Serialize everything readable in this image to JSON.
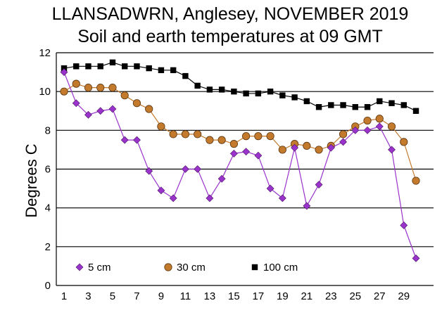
{
  "chart_data": {
    "type": "line",
    "title": "LLANSADWRN, Anglesey, NOVEMBER 2019",
    "subtitle": "Soil and earth temperatures at 09 GMT",
    "xlabel": "",
    "ylabel": "Degrees C",
    "xlim": [
      1,
      30
    ],
    "ylim": [
      0,
      12
    ],
    "x_ticks": [
      1,
      3,
      5,
      7,
      9,
      11,
      13,
      15,
      17,
      19,
      21,
      23,
      25,
      27,
      29
    ],
    "y_ticks": [
      0,
      2,
      4,
      6,
      8,
      10,
      12
    ],
    "grid": "horizontal",
    "legend": "bottom-inside",
    "x": [
      1,
      2,
      3,
      4,
      5,
      6,
      7,
      8,
      9,
      10,
      11,
      12,
      13,
      14,
      15,
      16,
      17,
      18,
      19,
      20,
      21,
      22,
      23,
      24,
      25,
      26,
      27,
      28,
      29,
      30
    ],
    "series": [
      {
        "name": "5 cm",
        "color": "#9933CC",
        "marker": "diamond",
        "values": [
          11.0,
          9.4,
          8.8,
          9.0,
          9.1,
          7.5,
          7.5,
          5.9,
          4.9,
          4.5,
          6.0,
          6.0,
          4.5,
          5.5,
          6.8,
          6.9,
          6.7,
          5.0,
          4.5,
          7.1,
          4.1,
          5.2,
          7.1,
          7.4,
          8.0,
          8.0,
          8.2,
          7.0,
          3.1,
          1.4
        ]
      },
      {
        "name": "30 cm",
        "color": "#C47A2C",
        "marker": "circle",
        "values": [
          10.0,
          10.4,
          10.2,
          10.2,
          10.2,
          9.8,
          9.4,
          9.1,
          8.2,
          7.8,
          7.8,
          7.8,
          7.5,
          7.5,
          7.3,
          7.7,
          7.7,
          7.7,
          7.0,
          7.3,
          7.2,
          7.0,
          7.2,
          7.8,
          8.2,
          8.5,
          8.6,
          8.2,
          7.4,
          5.4
        ]
      },
      {
        "name": "100 cm",
        "color": "#000000",
        "marker": "square",
        "values": [
          11.2,
          11.3,
          11.3,
          11.3,
          11.5,
          11.3,
          11.3,
          11.2,
          11.1,
          11.1,
          10.8,
          10.3,
          10.1,
          10.1,
          10.0,
          9.9,
          9.9,
          10.0,
          9.8,
          9.7,
          9.5,
          9.2,
          9.3,
          9.3,
          9.2,
          9.2,
          9.5,
          9.4,
          9.3,
          9.0
        ]
      }
    ]
  }
}
